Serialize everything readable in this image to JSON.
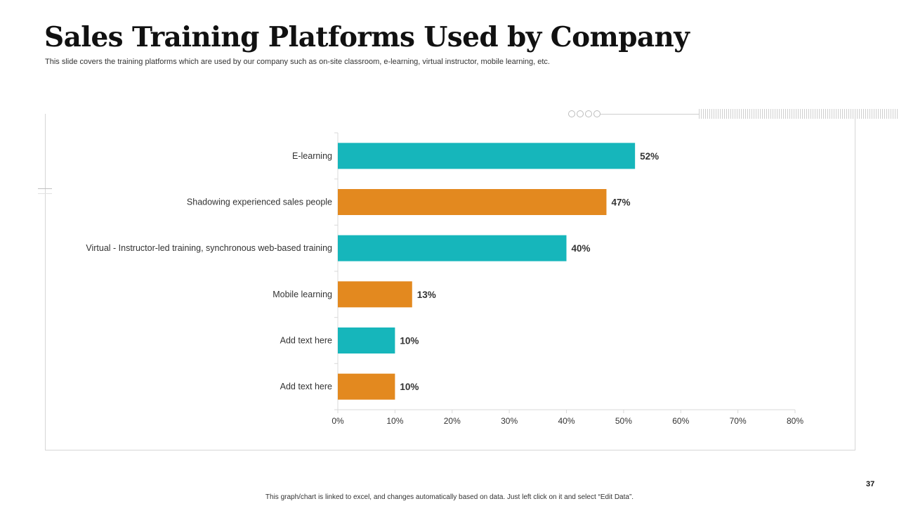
{
  "slide": {
    "title": "Sales Training Platforms Used by Company",
    "subtitle": "This slide covers the training platforms which are used by our company such as on-site classroom, e-learning, virtual instructor, mobile learning, etc.",
    "footer": "This graph/chart is linked to excel, and changes automatically based on data. Just left click on it and select “Edit Data”.",
    "page_number": "37"
  },
  "colors": {
    "teal": "#16b6bb",
    "orange": "#e3891f",
    "axis": "#d9d9d9",
    "text": "#333333"
  },
  "chart_data": {
    "type": "bar",
    "orientation": "horizontal",
    "categories": [
      "E-learning",
      "Shadowing experienced sales people",
      "Virtual - Instructor-led training, synchronous web-based training",
      "Mobile learning",
      "Add text here",
      "Add text here"
    ],
    "values": [
      52,
      47,
      40,
      13,
      10,
      10
    ],
    "value_labels": [
      "52%",
      "47%",
      "40%",
      "13%",
      "10%",
      "10%"
    ],
    "bar_colors": [
      "teal",
      "orange",
      "teal",
      "orange",
      "teal",
      "orange"
    ],
    "xlim": [
      0,
      80
    ],
    "x_ticks": [
      0,
      10,
      20,
      30,
      40,
      50,
      60,
      70,
      80
    ],
    "x_tick_labels": [
      "0%",
      "10%",
      "20%",
      "30%",
      "40%",
      "50%",
      "60%",
      "70%",
      "80%"
    ],
    "title": "",
    "xlabel": "",
    "ylabel": "",
    "grid": false,
    "legend": "none"
  }
}
